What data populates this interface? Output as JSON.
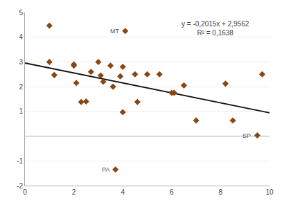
{
  "chart_data": {
    "type": "scatter",
    "series": [
      {
        "type": "scatter",
        "marker": "diamond",
        "color": "#8B4513",
        "x": [
          1.0,
          1.0,
          1.2,
          2.0,
          2.0,
          2.1,
          2.3,
          2.5,
          2.7,
          3.0,
          3.1,
          3.2,
          3.5,
          3.6,
          3.9,
          4.0,
          4.0,
          4.1,
          4.5,
          4.6,
          5.0,
          5.5,
          6.0,
          6.1,
          6.5,
          7.0,
          8.2,
          8.5,
          9.5,
          9.7,
          3.7
        ],
        "values": [
          4.47,
          3.0,
          2.47,
          2.9,
          2.85,
          2.15,
          1.38,
          1.4,
          2.6,
          3.0,
          2.45,
          2.2,
          2.85,
          2.0,
          2.42,
          2.8,
          0.97,
          4.25,
          2.5,
          1.38,
          2.5,
          2.5,
          1.75,
          1.75,
          2.05,
          0.63,
          2.12,
          0.63,
          0.03,
          2.5,
          -1.35
        ]
      },
      {
        "type": "line",
        "line_style": "solid",
        "color": "#111111",
        "x": [
          0,
          10
        ],
        "values": [
          2.9562,
          0.9412
        ]
      }
    ],
    "annotations": [
      {
        "text": "y = -0,2015x + 2,9562\nR² = 0,1638",
        "x": 7.8,
        "y": 4.75
      },
      {
        "text": "MT",
        "x": 4.1,
        "y": 4.25
      },
      {
        "text": "SP",
        "x": 9.5,
        "y": 0.03
      },
      {
        "text": "PA",
        "x": 3.7,
        "y": -1.35
      }
    ],
    "xlim": [
      0,
      10
    ],
    "ylim": [
      -2,
      5
    ],
    "xticks": [
      0,
      2,
      4,
      6,
      8,
      10
    ],
    "yticks": [
      -2,
      -1,
      1,
      2,
      3,
      4,
      5
    ],
    "grid": "y"
  }
}
